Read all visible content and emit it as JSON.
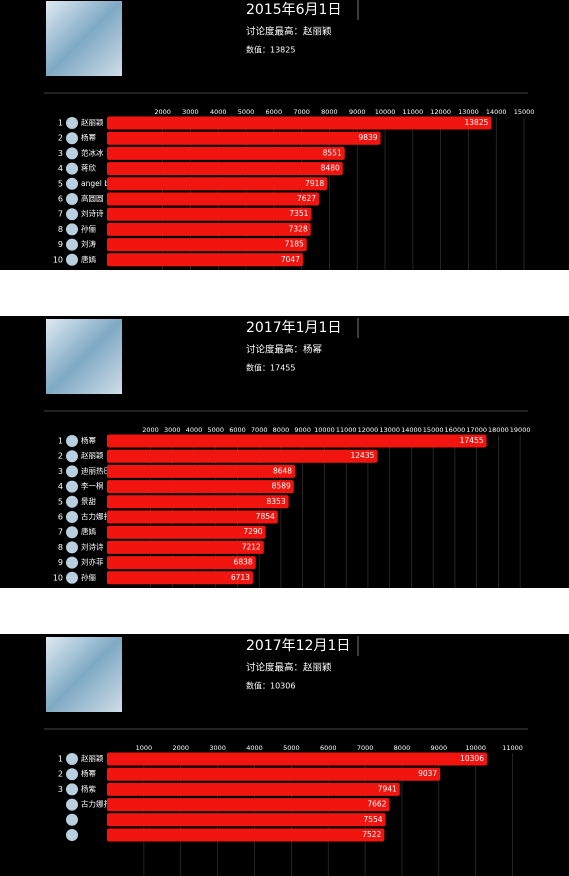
{
  "chart_data": [
    {
      "type": "bar",
      "title": "2015年6月1日",
      "subtitle": "讨论度最高：赵丽颖",
      "annotation": "数值：13825",
      "ranks": [
        1,
        2,
        3,
        4,
        5,
        6,
        7,
        8,
        9,
        10
      ],
      "categories": [
        "赵丽颖",
        "杨幂",
        "范冰冰",
        "蒋欣",
        "angel baby",
        "高圆圆",
        "刘诗诗",
        "孙俪",
        "刘涛",
        "唐嫣"
      ],
      "values": [
        13825,
        9839,
        8551,
        8480,
        7918,
        7627,
        7351,
        7328,
        7185,
        7047
      ],
      "color": "#f2150f",
      "xlim": [
        0,
        15250
      ],
      "xticks": [
        2000,
        3000,
        4000,
        5000,
        6000,
        7000,
        8000,
        9000,
        10000,
        11000,
        12000,
        13000,
        14000,
        15000
      ],
      "grid": true
    },
    {
      "type": "bar",
      "title": "2017年1月1日",
      "subtitle": "讨论度最高：杨幂",
      "annotation": "数值：17455",
      "ranks": [
        1,
        2,
        3,
        4,
        5,
        6,
        7,
        8,
        9,
        10
      ],
      "categories": [
        "杨幂",
        "赵丽颖",
        "迪丽热巴",
        "李一桐",
        "景甜",
        "古力娜扎",
        "唐嫣",
        "刘诗诗",
        "刘亦菲",
        "孙俪"
      ],
      "values": [
        17455,
        12435,
        8648,
        8589,
        8353,
        7854,
        7290,
        7212,
        6838,
        6713
      ],
      "color": "#f2150f",
      "xlim": [
        0,
        19500
      ],
      "xticks": [
        2000,
        3000,
        4000,
        5000,
        6000,
        7000,
        8000,
        9000,
        10000,
        11000,
        12000,
        13000,
        14000,
        15000,
        16000,
        17000,
        18000,
        19000
      ],
      "grid": true
    },
    {
      "type": "bar",
      "title": "2017年12月1日",
      "subtitle": "讨论度最高：赵丽颖",
      "annotation": "数值：10306",
      "ranks": [
        1,
        2,
        3,
        null,
        null,
        null
      ],
      "categories": [
        "赵丽颖",
        "杨幂",
        "杨紫",
        "古力娜扎",
        null,
        null
      ],
      "values": [
        10306,
        9037,
        7941,
        7662,
        7554,
        7522
      ],
      "color": "#f2150f",
      "xlim": [
        0,
        11500
      ],
      "xticks": [
        1000,
        2000,
        3000,
        4000,
        5000,
        6000,
        7000,
        8000,
        9000,
        10000,
        11000
      ],
      "grid": true
    }
  ]
}
